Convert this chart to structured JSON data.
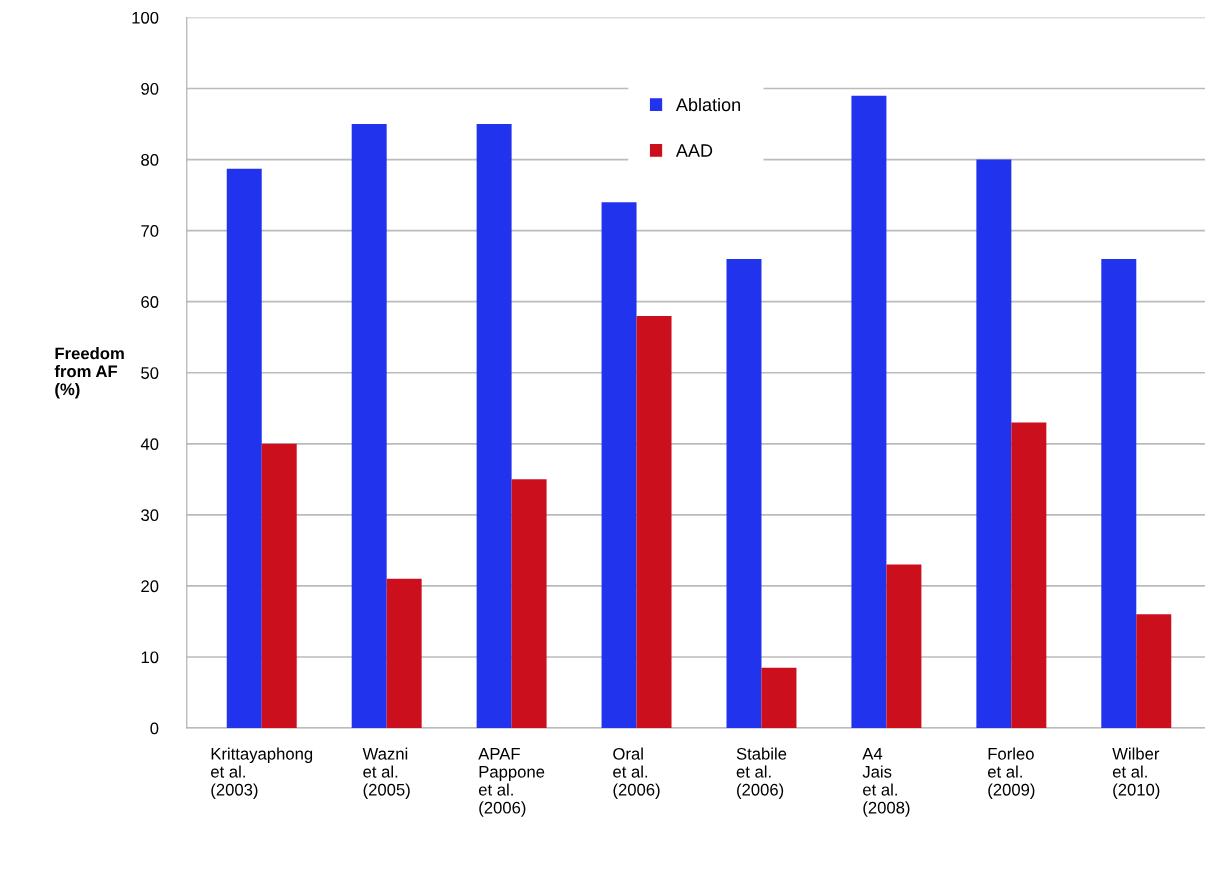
{
  "chart_data": {
    "type": "bar",
    "ylabel": "Freedom\nfrom AF\n(%)",
    "categories": [
      "Krittayaphong\net al.\n(2003)",
      "Wazni\net al.\n(2005)",
      "APAF\nPappone\net al.\n(2006)",
      "Oral\net al.\n(2006)",
      "Stabile\net al.\n(2006)",
      "A4\nJais\net al.\n(2008)",
      "Forleo\net al.\n(2009)",
      "Wilber\net al.\n(2010)"
    ],
    "series": [
      {
        "name": "Ablation",
        "color": "#2233ee",
        "values": [
          78.7,
          85,
          85,
          74,
          66,
          89,
          80,
          66
        ]
      },
      {
        "name": "AAD",
        "color": "#cc0f1c",
        "values": [
          40,
          21,
          35,
          58,
          8.5,
          23,
          43,
          16
        ]
      }
    ],
    "ylim": [
      0,
      100
    ],
    "yticks": [
      0,
      10,
      20,
      30,
      40,
      50,
      60,
      70,
      80,
      90,
      100
    ],
    "grid": "y",
    "legend": "top"
  }
}
